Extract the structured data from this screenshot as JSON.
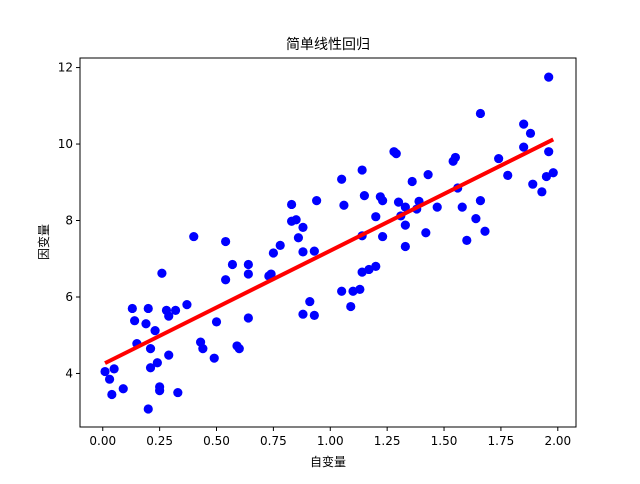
{
  "chart_data": {
    "type": "scatter",
    "title": "简单线性回归",
    "xlabel": "自变量",
    "ylabel": "因变量",
    "xlim": [
      -0.1,
      2.08
    ],
    "ylim": [
      2.6,
      12.25
    ],
    "x_ticks": [
      {
        "value": 0.0,
        "label": "0.00"
      },
      {
        "value": 0.25,
        "label": "0.25"
      },
      {
        "value": 0.5,
        "label": "0.50"
      },
      {
        "value": 0.75,
        "label": "0.75"
      },
      {
        "value": 1.0,
        "label": "1.00"
      },
      {
        "value": 1.25,
        "label": "1.25"
      },
      {
        "value": 1.5,
        "label": "1.50"
      },
      {
        "value": 1.75,
        "label": "1.75"
      },
      {
        "value": 2.0,
        "label": "2.00"
      }
    ],
    "y_ticks": [
      {
        "value": 4,
        "label": "4"
      },
      {
        "value": 6,
        "label": "6"
      },
      {
        "value": 8,
        "label": "8"
      },
      {
        "value": 10,
        "label": "10"
      },
      {
        "value": 12,
        "label": "12"
      }
    ],
    "grid": false,
    "colors": {
      "points": "#0000ff",
      "line": "#ff0000"
    },
    "points": [
      {
        "x": 0.01,
        "y": 4.05
      },
      {
        "x": 0.03,
        "y": 3.85
      },
      {
        "x": 0.04,
        "y": 3.45
      },
      {
        "x": 0.05,
        "y": 4.12
      },
      {
        "x": 0.09,
        "y": 3.6
      },
      {
        "x": 0.13,
        "y": 5.7
      },
      {
        "x": 0.14,
        "y": 5.38
      },
      {
        "x": 0.15,
        "y": 4.78
      },
      {
        "x": 0.19,
        "y": 5.3
      },
      {
        "x": 0.2,
        "y": 5.7
      },
      {
        "x": 0.21,
        "y": 4.15
      },
      {
        "x": 0.2,
        "y": 3.07
      },
      {
        "x": 0.21,
        "y": 4.65
      },
      {
        "x": 0.23,
        "y": 5.12
      },
      {
        "x": 0.24,
        "y": 4.28
      },
      {
        "x": 0.25,
        "y": 3.65
      },
      {
        "x": 0.25,
        "y": 3.55
      },
      {
        "x": 0.26,
        "y": 6.62
      },
      {
        "x": 0.28,
        "y": 5.65
      },
      {
        "x": 0.29,
        "y": 5.5
      },
      {
        "x": 0.29,
        "y": 4.48
      },
      {
        "x": 0.32,
        "y": 5.65
      },
      {
        "x": 0.33,
        "y": 3.5
      },
      {
        "x": 0.37,
        "y": 5.8
      },
      {
        "x": 0.4,
        "y": 7.58
      },
      {
        "x": 0.43,
        "y": 4.82
      },
      {
        "x": 0.44,
        "y": 4.65
      },
      {
        "x": 0.49,
        "y": 4.4
      },
      {
        "x": 0.5,
        "y": 5.35
      },
      {
        "x": 0.54,
        "y": 7.45
      },
      {
        "x": 0.54,
        "y": 6.45
      },
      {
        "x": 0.57,
        "y": 6.85
      },
      {
        "x": 0.59,
        "y": 4.72
      },
      {
        "x": 0.6,
        "y": 4.65
      },
      {
        "x": 0.64,
        "y": 6.6
      },
      {
        "x": 0.64,
        "y": 6.85
      },
      {
        "x": 0.64,
        "y": 5.45
      },
      {
        "x": 0.73,
        "y": 6.55
      },
      {
        "x": 0.74,
        "y": 6.6
      },
      {
        "x": 0.75,
        "y": 7.15
      },
      {
        "x": 0.78,
        "y": 7.35
      },
      {
        "x": 0.83,
        "y": 8.42
      },
      {
        "x": 0.83,
        "y": 7.98
      },
      {
        "x": 0.85,
        "y": 8.02
      },
      {
        "x": 0.86,
        "y": 7.55
      },
      {
        "x": 0.88,
        "y": 7.82
      },
      {
        "x": 0.88,
        "y": 7.18
      },
      {
        "x": 0.88,
        "y": 5.55
      },
      {
        "x": 0.91,
        "y": 5.88
      },
      {
        "x": 0.93,
        "y": 5.52
      },
      {
        "x": 0.93,
        "y": 7.2
      },
      {
        "x": 0.94,
        "y": 8.52
      },
      {
        "x": 1.05,
        "y": 9.08
      },
      {
        "x": 1.05,
        "y": 6.15
      },
      {
        "x": 1.06,
        "y": 8.4
      },
      {
        "x": 1.09,
        "y": 5.75
      },
      {
        "x": 1.1,
        "y": 6.15
      },
      {
        "x": 1.13,
        "y": 6.2
      },
      {
        "x": 1.14,
        "y": 9.32
      },
      {
        "x": 1.14,
        "y": 6.65
      },
      {
        "x": 1.14,
        "y": 7.6
      },
      {
        "x": 1.15,
        "y": 8.65
      },
      {
        "x": 1.17,
        "y": 6.72
      },
      {
        "x": 1.2,
        "y": 8.1
      },
      {
        "x": 1.2,
        "y": 6.8
      },
      {
        "x": 1.22,
        "y": 8.62
      },
      {
        "x": 1.23,
        "y": 8.52
      },
      {
        "x": 1.23,
        "y": 7.58
      },
      {
        "x": 1.28,
        "y": 9.8
      },
      {
        "x": 1.29,
        "y": 9.75
      },
      {
        "x": 1.3,
        "y": 8.48
      },
      {
        "x": 1.31,
        "y": 8.12
      },
      {
        "x": 1.33,
        "y": 8.35
      },
      {
        "x": 1.33,
        "y": 7.88
      },
      {
        "x": 1.33,
        "y": 7.32
      },
      {
        "x": 1.36,
        "y": 9.02
      },
      {
        "x": 1.38,
        "y": 8.3
      },
      {
        "x": 1.39,
        "y": 8.5
      },
      {
        "x": 1.42,
        "y": 7.68
      },
      {
        "x": 1.43,
        "y": 9.2
      },
      {
        "x": 1.47,
        "y": 8.35
      },
      {
        "x": 1.54,
        "y": 9.55
      },
      {
        "x": 1.55,
        "y": 9.65
      },
      {
        "x": 1.56,
        "y": 8.85
      },
      {
        "x": 1.58,
        "y": 8.35
      },
      {
        "x": 1.6,
        "y": 7.48
      },
      {
        "x": 1.64,
        "y": 8.05
      },
      {
        "x": 1.66,
        "y": 10.8
      },
      {
        "x": 1.66,
        "y": 8.52
      },
      {
        "x": 1.68,
        "y": 7.72
      },
      {
        "x": 1.74,
        "y": 9.62
      },
      {
        "x": 1.78,
        "y": 9.18
      },
      {
        "x": 1.85,
        "y": 10.52
      },
      {
        "x": 1.85,
        "y": 9.92
      },
      {
        "x": 1.88,
        "y": 10.28
      },
      {
        "x": 1.89,
        "y": 8.95
      },
      {
        "x": 1.93,
        "y": 8.75
      },
      {
        "x": 1.95,
        "y": 9.15
      },
      {
        "x": 1.96,
        "y": 11.75
      },
      {
        "x": 1.96,
        "y": 9.8
      },
      {
        "x": 1.98,
        "y": 9.25
      }
    ],
    "regression_line": {
      "x": [
        0.01,
        1.98
      ],
      "y": [
        4.27,
        10.12
      ]
    }
  }
}
